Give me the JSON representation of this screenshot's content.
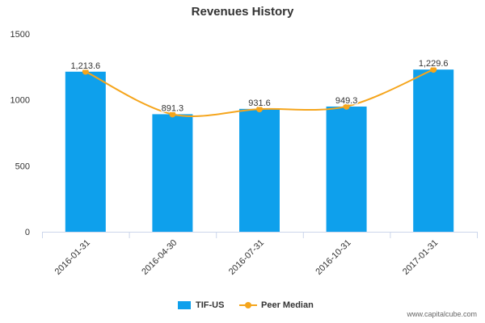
{
  "chart_data": {
    "type": "bar",
    "title": "Revenues History",
    "xlabel": "",
    "ylabel": "",
    "categories": [
      "2016-01-31",
      "2016-04-30",
      "2016-07-31",
      "2016-10-31",
      "2017-01-31"
    ],
    "series": [
      {
        "name": "TIF-US",
        "type": "bar",
        "values": [
          1213.6,
          891.3,
          931.6,
          949.3,
          1229.6
        ],
        "labels": [
          "1,213.6",
          "891.3",
          "931.6",
          "949.3",
          "1,229.6"
        ],
        "color": "#0ea0ec"
      },
      {
        "name": "Peer Median",
        "type": "line",
        "values": [
          1215,
          891,
          930,
          950,
          1230
        ],
        "color": "#f5a51c"
      }
    ],
    "ylim": [
      0,
      1500
    ],
    "yticks": [
      0,
      500,
      1000,
      1500
    ],
    "grid": false,
    "legend": "bottom-center"
  },
  "watermark": "www.capitalcube.com"
}
